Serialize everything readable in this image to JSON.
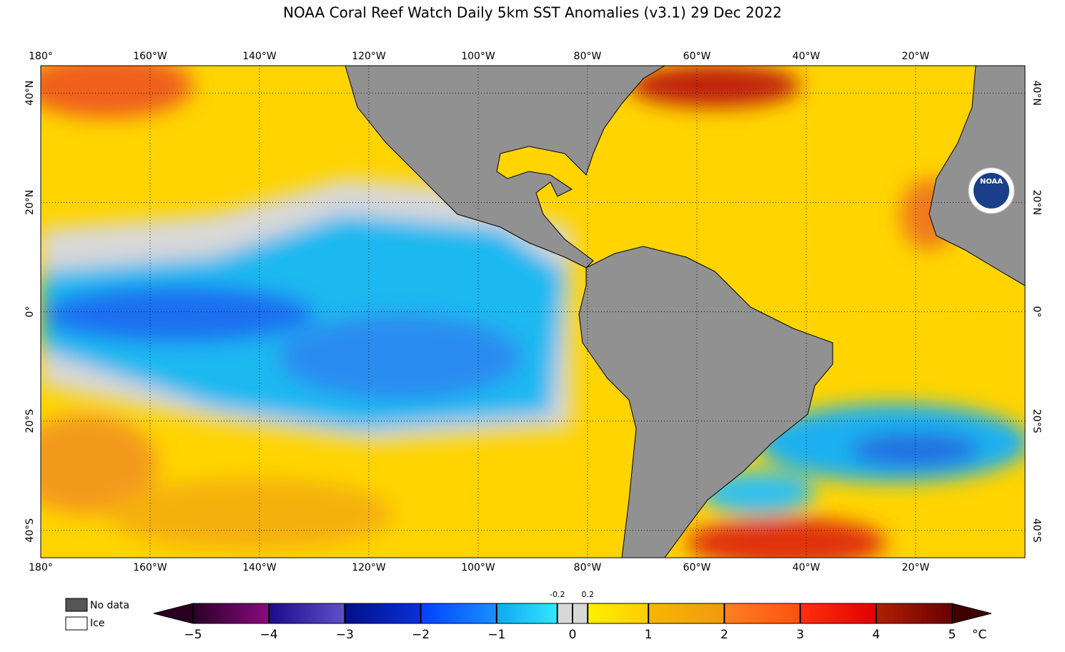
{
  "title": "NOAA Coral Reef Watch Daily 5km SST Anomalies  (v3.1)   29 Dec 2022",
  "map": {
    "xlim": [
      -180,
      0
    ],
    "ylim": [
      -45,
      45
    ],
    "xticks": [
      {
        "value": -180,
        "label": "180°"
      },
      {
        "value": -160,
        "label": "160°W"
      },
      {
        "value": -140,
        "label": "140°W"
      },
      {
        "value": -120,
        "label": "120°W"
      },
      {
        "value": -100,
        "label": "100°W"
      },
      {
        "value": -80,
        "label": "80°W"
      },
      {
        "value": -60,
        "label": "60°W"
      },
      {
        "value": -40,
        "label": "40°W"
      },
      {
        "value": -20,
        "label": "20°W"
      }
    ],
    "yticks": [
      {
        "value": 40,
        "label": "40°N"
      },
      {
        "value": 20,
        "label": "20°N"
      },
      {
        "value": 0,
        "label": "0°"
      },
      {
        "value": -20,
        "label": "20°S"
      },
      {
        "value": -40,
        "label": "40°S"
      }
    ],
    "logo": "NOAA"
  },
  "legend": {
    "no_data": "No data",
    "ice": "Ice"
  },
  "colorbar": {
    "lim": [
      -5,
      5
    ],
    "ticks": [
      {
        "value": -5,
        "label": "−5"
      },
      {
        "value": -4,
        "label": "−4"
      },
      {
        "value": -3,
        "label": "−3"
      },
      {
        "value": -2,
        "label": "−2"
      },
      {
        "value": -1,
        "label": "−1"
      },
      0,
      1,
      2,
      3,
      4,
      5
    ],
    "fine_ticks": [
      {
        "value": -0.2,
        "label": "-0.2"
      },
      0.2
    ],
    "unit": "°C"
  }
}
